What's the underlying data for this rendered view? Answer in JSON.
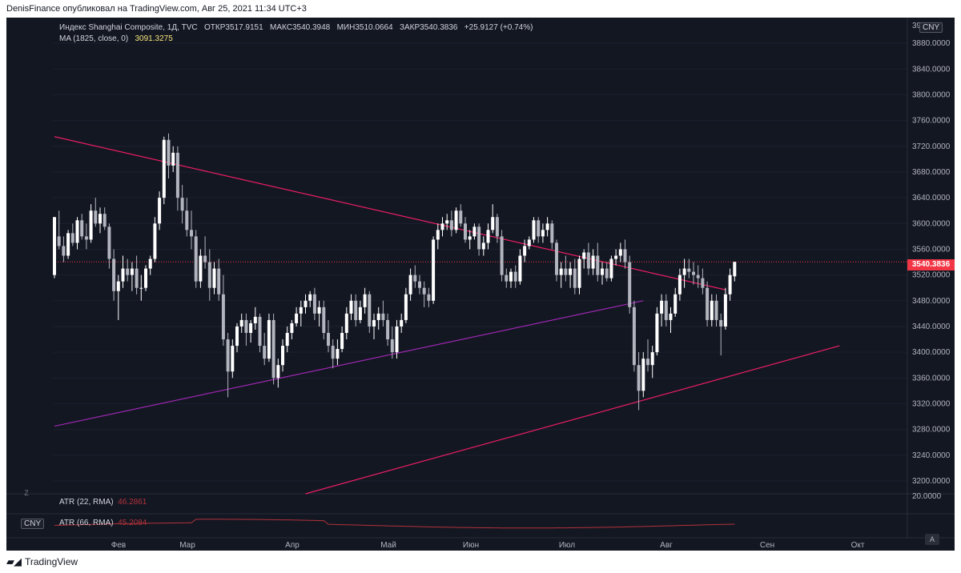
{
  "header": {
    "publish_text": "DenisFinance опубликовал на TradingView.com, Авг 25, 2021 11:34 UTC+3"
  },
  "legend": {
    "symbol_line": "Индекс Shanghai Composite, 1Д, TVC",
    "open_label": "ОТКР",
    "open_value": "3517.9151",
    "high_label": "МАКС",
    "high_value": "3540.3948",
    "low_label": "МИН",
    "low_value": "3510.0664",
    "close_label": "ЗАКР",
    "close_value": "3540.3836",
    "change": "+25.9127 (+0.74%)",
    "ma_label": "MA (1825, close, 0)",
    "ma_value": "3091.3275"
  },
  "atr1": {
    "label": "ATR (22, RMA)",
    "value": "46.2861"
  },
  "atr2": {
    "label": "ATR (66, RMA)",
    "value": "45.2084"
  },
  "currency": "CNY",
  "price_tag": "3540.3836",
  "scale_top_partial": "39",
  "atr_scale_label": "20.0000",
  "auto_button": "A",
  "zoom_button": "Z",
  "footer": {
    "brand": "TradingView"
  },
  "colors": {
    "background": "#131722",
    "candle_up": "#ffffff",
    "candle_down": "#b2b5be",
    "resistance_line": "#e91e63",
    "support_line": "#e91e63",
    "inner_support": "#9c27b0",
    "price_line": "#f23645",
    "atr_line": "#b2323b"
  },
  "chart_data": {
    "type": "candlestick",
    "title": "Индекс Shanghai Composite, 1Д, TVC",
    "ylabel": "CNY",
    "ylim": [
      3180,
      3920
    ],
    "y_ticks": [
      3200,
      3240,
      3280,
      3320,
      3360,
      3400,
      3440,
      3480,
      3520,
      3560,
      3600,
      3640,
      3680,
      3720,
      3760,
      3800,
      3840,
      3880
    ],
    "y_tick_labels": [
      "3200.0000",
      "3240.0000",
      "3280.0000",
      "3320.0000",
      "3360.0000",
      "3400.0000",
      "3440.0000",
      "3480.0000",
      "3520.0000",
      "3560.0000",
      "3600.0000",
      "3640.0000",
      "3680.0000",
      "3720.0000",
      "3760.0000",
      "3800.0000",
      "3840.0000",
      "3880.0000"
    ],
    "x_labels": [
      "Фев",
      "Мар",
      "Апр",
      "Май",
      "Июн",
      "Июл",
      "Авг",
      "Сен",
      "Окт"
    ],
    "last_price": 3540.3836,
    "candles": [
      [
        3520,
        3610,
        3515,
        3610
      ],
      [
        3580,
        3620,
        3560,
        3565
      ],
      [
        3565,
        3580,
        3540,
        3550
      ],
      [
        3550,
        3590,
        3545,
        3585
      ],
      [
        3585,
        3600,
        3565,
        3570
      ],
      [
        3570,
        3610,
        3560,
        3605
      ],
      [
        3605,
        3615,
        3575,
        3580
      ],
      [
        3580,
        3600,
        3560,
        3575
      ],
      [
        3575,
        3630,
        3570,
        3620
      ],
      [
        3620,
        3640,
        3595,
        3600
      ],
      [
        3600,
        3625,
        3585,
        3615
      ],
      [
        3615,
        3625,
        3590,
        3595
      ],
      [
        3595,
        3600,
        3530,
        3545
      ],
      [
        3545,
        3560,
        3480,
        3495
      ],
      [
        3495,
        3520,
        3450,
        3510
      ],
      [
        3510,
        3550,
        3500,
        3530
      ],
      [
        3530,
        3545,
        3510,
        3520
      ],
      [
        3520,
        3540,
        3495,
        3530
      ],
      [
        3530,
        3550,
        3490,
        3500
      ],
      [
        3500,
        3520,
        3480,
        3500
      ],
      [
        3500,
        3535,
        3495,
        3530
      ],
      [
        3530,
        3550,
        3520,
        3545
      ],
      [
        3545,
        3610,
        3540,
        3600
      ],
      [
        3600,
        3650,
        3590,
        3640
      ],
      [
        3640,
        3735,
        3630,
        3730
      ],
      [
        3730,
        3740,
        3670,
        3690
      ],
      [
        3690,
        3720,
        3680,
        3710
      ],
      [
        3710,
        3720,
        3620,
        3640
      ],
      [
        3640,
        3660,
        3600,
        3620
      ],
      [
        3620,
        3640,
        3580,
        3590
      ],
      [
        3590,
        3620,
        3560,
        3580
      ],
      [
        3580,
        3590,
        3500,
        3510
      ],
      [
        3510,
        3560,
        3500,
        3550
      ],
      [
        3550,
        3580,
        3530,
        3540
      ],
      [
        3540,
        3560,
        3480,
        3500
      ],
      [
        3500,
        3540,
        3490,
        3530
      ],
      [
        3530,
        3545,
        3480,
        3490
      ],
      [
        3490,
        3520,
        3410,
        3420
      ],
      [
        3420,
        3430,
        3330,
        3370
      ],
      [
        3370,
        3420,
        3360,
        3410
      ],
      [
        3410,
        3445,
        3400,
        3440
      ],
      [
        3440,
        3460,
        3430,
        3450
      ],
      [
        3450,
        3460,
        3410,
        3430
      ],
      [
        3430,
        3450,
        3415,
        3445
      ],
      [
        3445,
        3470,
        3435,
        3455
      ],
      [
        3455,
        3460,
        3400,
        3410
      ],
      [
        3410,
        3430,
        3380,
        3390
      ],
      [
        3390,
        3460,
        3385,
        3450
      ],
      [
        3450,
        3460,
        3350,
        3360
      ],
      [
        3360,
        3390,
        3345,
        3380
      ],
      [
        3380,
        3420,
        3370,
        3410
      ],
      [
        3410,
        3440,
        3400,
        3430
      ],
      [
        3430,
        3450,
        3420,
        3445
      ],
      [
        3445,
        3470,
        3440,
        3460
      ],
      [
        3460,
        3480,
        3440,
        3470
      ],
      [
        3470,
        3490,
        3460,
        3480
      ],
      [
        3480,
        3495,
        3470,
        3490
      ],
      [
        3490,
        3500,
        3450,
        3460
      ],
      [
        3460,
        3480,
        3440,
        3470
      ],
      [
        3470,
        3480,
        3420,
        3430
      ],
      [
        3430,
        3450,
        3400,
        3410
      ],
      [
        3410,
        3420,
        3375,
        3390
      ],
      [
        3390,
        3420,
        3380,
        3405
      ],
      [
        3405,
        3440,
        3400,
        3430
      ],
      [
        3430,
        3470,
        3420,
        3460
      ],
      [
        3460,
        3490,
        3450,
        3480
      ],
      [
        3480,
        3490,
        3440,
        3450
      ],
      [
        3450,
        3480,
        3445,
        3470
      ],
      [
        3470,
        3500,
        3460,
        3490
      ],
      [
        3490,
        3495,
        3430,
        3440
      ],
      [
        3440,
        3460,
        3420,
        3450
      ],
      [
        3450,
        3470,
        3435,
        3460
      ],
      [
        3460,
        3480,
        3440,
        3450
      ],
      [
        3450,
        3460,
        3410,
        3420
      ],
      [
        3420,
        3440,
        3390,
        3400
      ],
      [
        3400,
        3450,
        3390,
        3440
      ],
      [
        3440,
        3460,
        3430,
        3450
      ],
      [
        3450,
        3500,
        3445,
        3490
      ],
      [
        3490,
        3530,
        3480,
        3520
      ],
      [
        3520,
        3535,
        3500,
        3510
      ],
      [
        3510,
        3520,
        3490,
        3500
      ],
      [
        3500,
        3510,
        3470,
        3490
      ],
      [
        3490,
        3500,
        3470,
        3480
      ],
      [
        3480,
        3580,
        3475,
        3575
      ],
      [
        3575,
        3600,
        3560,
        3590
      ],
      [
        3590,
        3610,
        3580,
        3600
      ],
      [
        3600,
        3615,
        3590,
        3605
      ],
      [
        3605,
        3620,
        3580,
        3590
      ],
      [
        3590,
        3625,
        3585,
        3620
      ],
      [
        3620,
        3630,
        3595,
        3600
      ],
      [
        3600,
        3610,
        3570,
        3575
      ],
      [
        3575,
        3590,
        3560,
        3580
      ],
      [
        3580,
        3600,
        3575,
        3595
      ],
      [
        3595,
        3600,
        3550,
        3560
      ],
      [
        3560,
        3580,
        3550,
        3570
      ],
      [
        3570,
        3600,
        3560,
        3590
      ],
      [
        3590,
        3630,
        3585,
        3610
      ],
      [
        3610,
        3615,
        3570,
        3580
      ],
      [
        3580,
        3590,
        3510,
        3520
      ],
      [
        3520,
        3530,
        3500,
        3510
      ],
      [
        3510,
        3530,
        3500,
        3525
      ],
      [
        3525,
        3535,
        3500,
        3510
      ],
      [
        3510,
        3560,
        3505,
        3550
      ],
      [
        3550,
        3575,
        3540,
        3565
      ],
      [
        3565,
        3580,
        3560,
        3575
      ],
      [
        3575,
        3610,
        3570,
        3605
      ],
      [
        3605,
        3610,
        3570,
        3580
      ],
      [
        3580,
        3600,
        3570,
        3590
      ],
      [
        3590,
        3610,
        3580,
        3600
      ],
      [
        3600,
        3605,
        3560,
        3570
      ],
      [
        3570,
        3575,
        3510,
        3520
      ],
      [
        3520,
        3540,
        3500,
        3530
      ],
      [
        3530,
        3550,
        3510,
        3520
      ],
      [
        3520,
        3540,
        3500,
        3530
      ],
      [
        3530,
        3545,
        3490,
        3500
      ],
      [
        3500,
        3550,
        3490,
        3545
      ],
      [
        3545,
        3560,
        3530,
        3555
      ],
      [
        3555,
        3570,
        3520,
        3530
      ],
      [
        3530,
        3560,
        3520,
        3550
      ],
      [
        3550,
        3570,
        3510,
        3520
      ],
      [
        3520,
        3540,
        3505,
        3530
      ],
      [
        3530,
        3540,
        3510,
        3515
      ],
      [
        3515,
        3550,
        3510,
        3545
      ],
      [
        3545,
        3560,
        3535,
        3550
      ],
      [
        3550,
        3570,
        3540,
        3560
      ],
      [
        3560,
        3575,
        3530,
        3540
      ],
      [
        3540,
        3550,
        3460,
        3470
      ],
      [
        3470,
        3480,
        3370,
        3380
      ],
      [
        3380,
        3400,
        3310,
        3340
      ],
      [
        3340,
        3400,
        3330,
        3390
      ],
      [
        3390,
        3420,
        3370,
        3380
      ],
      [
        3380,
        3410,
        3360,
        3400
      ],
      [
        3400,
        3470,
        3395,
        3460
      ],
      [
        3460,
        3490,
        3440,
        3480
      ],
      [
        3480,
        3490,
        3440,
        3450
      ],
      [
        3450,
        3470,
        3430,
        3460
      ],
      [
        3460,
        3500,
        3455,
        3490
      ],
      [
        3490,
        3530,
        3480,
        3520
      ],
      [
        3520,
        3545,
        3500,
        3530
      ],
      [
        3530,
        3545,
        3515,
        3525
      ],
      [
        3525,
        3540,
        3505,
        3520
      ],
      [
        3520,
        3535,
        3500,
        3515
      ],
      [
        3515,
        3530,
        3490,
        3500
      ],
      [
        3500,
        3510,
        3440,
        3450
      ],
      [
        3450,
        3490,
        3440,
        3480
      ],
      [
        3480,
        3490,
        3440,
        3450
      ],
      [
        3450,
        3460,
        3395,
        3440
      ],
      [
        3440,
        3500,
        3435,
        3490
      ],
      [
        3490,
        3530,
        3480,
        3520
      ],
      [
        3517.9151,
        3540.3948,
        3510.0664,
        3540.3836
      ]
    ],
    "lines": [
      {
        "name": "",
        "points": [
          [
            0,
            3735
          ],
          [
            147,
            3497
          ]
        ]
      },
      {
        "name": "",
        "points": [
          [
            0,
            3285
          ],
          [
            129,
            3480
          ]
        ]
      },
      {
        "name": "",
        "points": [
          [
            55,
            3180
          ],
          [
            172,
            3410
          ]
        ]
      }
    ]
  }
}
